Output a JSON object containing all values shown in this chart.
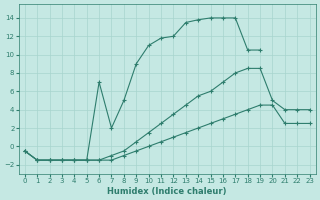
{
  "xlabel": "Humidex (Indice chaleur)",
  "background_color": "#c5e8e3",
  "line_color": "#2e7d6d",
  "grid_color": "#a8d5ce",
  "xlim": [
    -0.5,
    23.5
  ],
  "ylim": [
    -3.0,
    15.5
  ],
  "yticks": [
    -2,
    0,
    2,
    4,
    6,
    8,
    10,
    12,
    14
  ],
  "xticks": [
    0,
    1,
    2,
    3,
    4,
    5,
    6,
    7,
    8,
    9,
    10,
    11,
    12,
    13,
    14,
    15,
    16,
    17,
    18,
    19,
    20,
    21,
    22,
    23
  ],
  "line1_x": [
    0,
    1,
    2,
    3,
    4,
    5,
    6,
    7,
    8,
    9,
    10,
    11,
    12,
    13,
    14,
    15,
    16,
    17,
    18,
    19,
    20,
    21,
    22,
    23
  ],
  "line1_y": [
    -0.5,
    -1.5,
    -1.5,
    -1.5,
    -1.5,
    -1.5,
    -1.5,
    -1.5,
    -1.0,
    -0.5,
    0.0,
    0.5,
    1.0,
    1.5,
    2.0,
    2.5,
    3.0,
    3.5,
    4.0,
    4.5,
    4.5,
    2.5,
    2.5,
    2.5
  ],
  "line2_x": [
    0,
    1,
    2,
    3,
    4,
    5,
    6,
    7,
    8,
    9,
    10,
    11,
    12,
    13,
    14,
    15,
    16,
    17,
    18,
    19,
    20,
    21,
    22,
    23
  ],
  "line2_y": [
    -0.5,
    -1.5,
    -1.5,
    -1.5,
    -1.5,
    -1.5,
    -1.5,
    -1.0,
    -0.5,
    0.5,
    1.5,
    2.5,
    3.5,
    4.5,
    5.5,
    6.0,
    7.0,
    8.0,
    8.5,
    8.5,
    5.0,
    4.0,
    4.0,
    4.0
  ],
  "line3_x": [
    0,
    1,
    2,
    3,
    4,
    5,
    6,
    7,
    8,
    9,
    10,
    11,
    12,
    13,
    14,
    15,
    16,
    17,
    18,
    19
  ],
  "line3_y": [
    -0.5,
    -1.5,
    -1.5,
    -1.5,
    -1.5,
    -1.5,
    7.0,
    2.0,
    5.0,
    9.0,
    11.0,
    11.8,
    12.0,
    13.5,
    13.8,
    14.0,
    14.0,
    14.0,
    10.5,
    10.5
  ]
}
